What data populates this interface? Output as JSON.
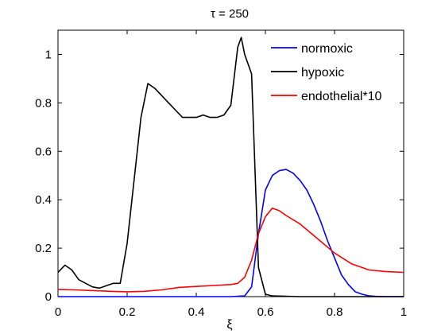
{
  "chart_data": {
    "type": "line",
    "title": "τ = 250",
    "xlabel": "ξ",
    "ylabel": "",
    "xlim": [
      0,
      1
    ],
    "ylim": [
      0,
      1.1
    ],
    "xticks": [
      0,
      0.2,
      0.4,
      0.6,
      0.8,
      1
    ],
    "xtick_labels": [
      "0",
      "0.2",
      "0.4",
      "0.6",
      "0.8",
      "1"
    ],
    "yticks": [
      0,
      0.2,
      0.4,
      0.6,
      0.8,
      1
    ],
    "ytick_labels": [
      "0",
      "0.2",
      "0.4",
      "0.6",
      "0.8",
      "1"
    ],
    "grid": false,
    "legend_position": "top-right",
    "series": [
      {
        "name": "normoxic",
        "color": "#0000ff",
        "x": [
          0,
          0.1,
          0.2,
          0.3,
          0.4,
          0.5,
          0.54,
          0.56,
          0.58,
          0.6,
          0.62,
          0.64,
          0.66,
          0.68,
          0.7,
          0.72,
          0.74,
          0.76,
          0.78,
          0.8,
          0.82,
          0.84,
          0.86,
          0.88,
          0.9,
          0.92,
          0.95,
          1.0
        ],
        "y": [
          0,
          0,
          0,
          0,
          0,
          0,
          0.003,
          0.04,
          0.26,
          0.44,
          0.5,
          0.52,
          0.525,
          0.51,
          0.48,
          0.44,
          0.38,
          0.31,
          0.23,
          0.16,
          0.09,
          0.05,
          0.02,
          0.01,
          0.003,
          0.001,
          0,
          0
        ]
      },
      {
        "name": "hypoxic",
        "color": "#000000",
        "x": [
          0,
          0.02,
          0.04,
          0.06,
          0.08,
          0.1,
          0.12,
          0.14,
          0.16,
          0.18,
          0.2,
          0.22,
          0.24,
          0.26,
          0.28,
          0.3,
          0.32,
          0.34,
          0.36,
          0.38,
          0.4,
          0.42,
          0.44,
          0.46,
          0.48,
          0.5,
          0.52,
          0.53,
          0.54,
          0.56,
          0.58,
          0.6,
          0.62,
          0.7,
          0.8,
          0.9,
          1.0
        ],
        "y": [
          0.1,
          0.13,
          0.11,
          0.07,
          0.055,
          0.04,
          0.035,
          0.045,
          0.055,
          0.055,
          0.22,
          0.48,
          0.74,
          0.88,
          0.86,
          0.83,
          0.8,
          0.77,
          0.74,
          0.74,
          0.74,
          0.75,
          0.74,
          0.74,
          0.75,
          0.79,
          1.03,
          1.07,
          1.0,
          0.92,
          0.12,
          0.01,
          0.003,
          0,
          0,
          0,
          0
        ]
      },
      {
        "name": "endothelial*10",
        "color": "#ff0000",
        "x": [
          0,
          0.05,
          0.1,
          0.15,
          0.2,
          0.25,
          0.3,
          0.35,
          0.4,
          0.45,
          0.5,
          0.52,
          0.54,
          0.56,
          0.58,
          0.6,
          0.62,
          0.64,
          0.66,
          0.7,
          0.75,
          0.8,
          0.85,
          0.9,
          0.95,
          1.0
        ],
        "y": [
          0.03,
          0.028,
          0.025,
          0.022,
          0.02,
          0.022,
          0.028,
          0.038,
          0.042,
          0.046,
          0.05,
          0.055,
          0.08,
          0.15,
          0.26,
          0.33,
          0.365,
          0.355,
          0.335,
          0.3,
          0.24,
          0.18,
          0.135,
          0.11,
          0.103,
          0.1
        ]
      }
    ]
  }
}
